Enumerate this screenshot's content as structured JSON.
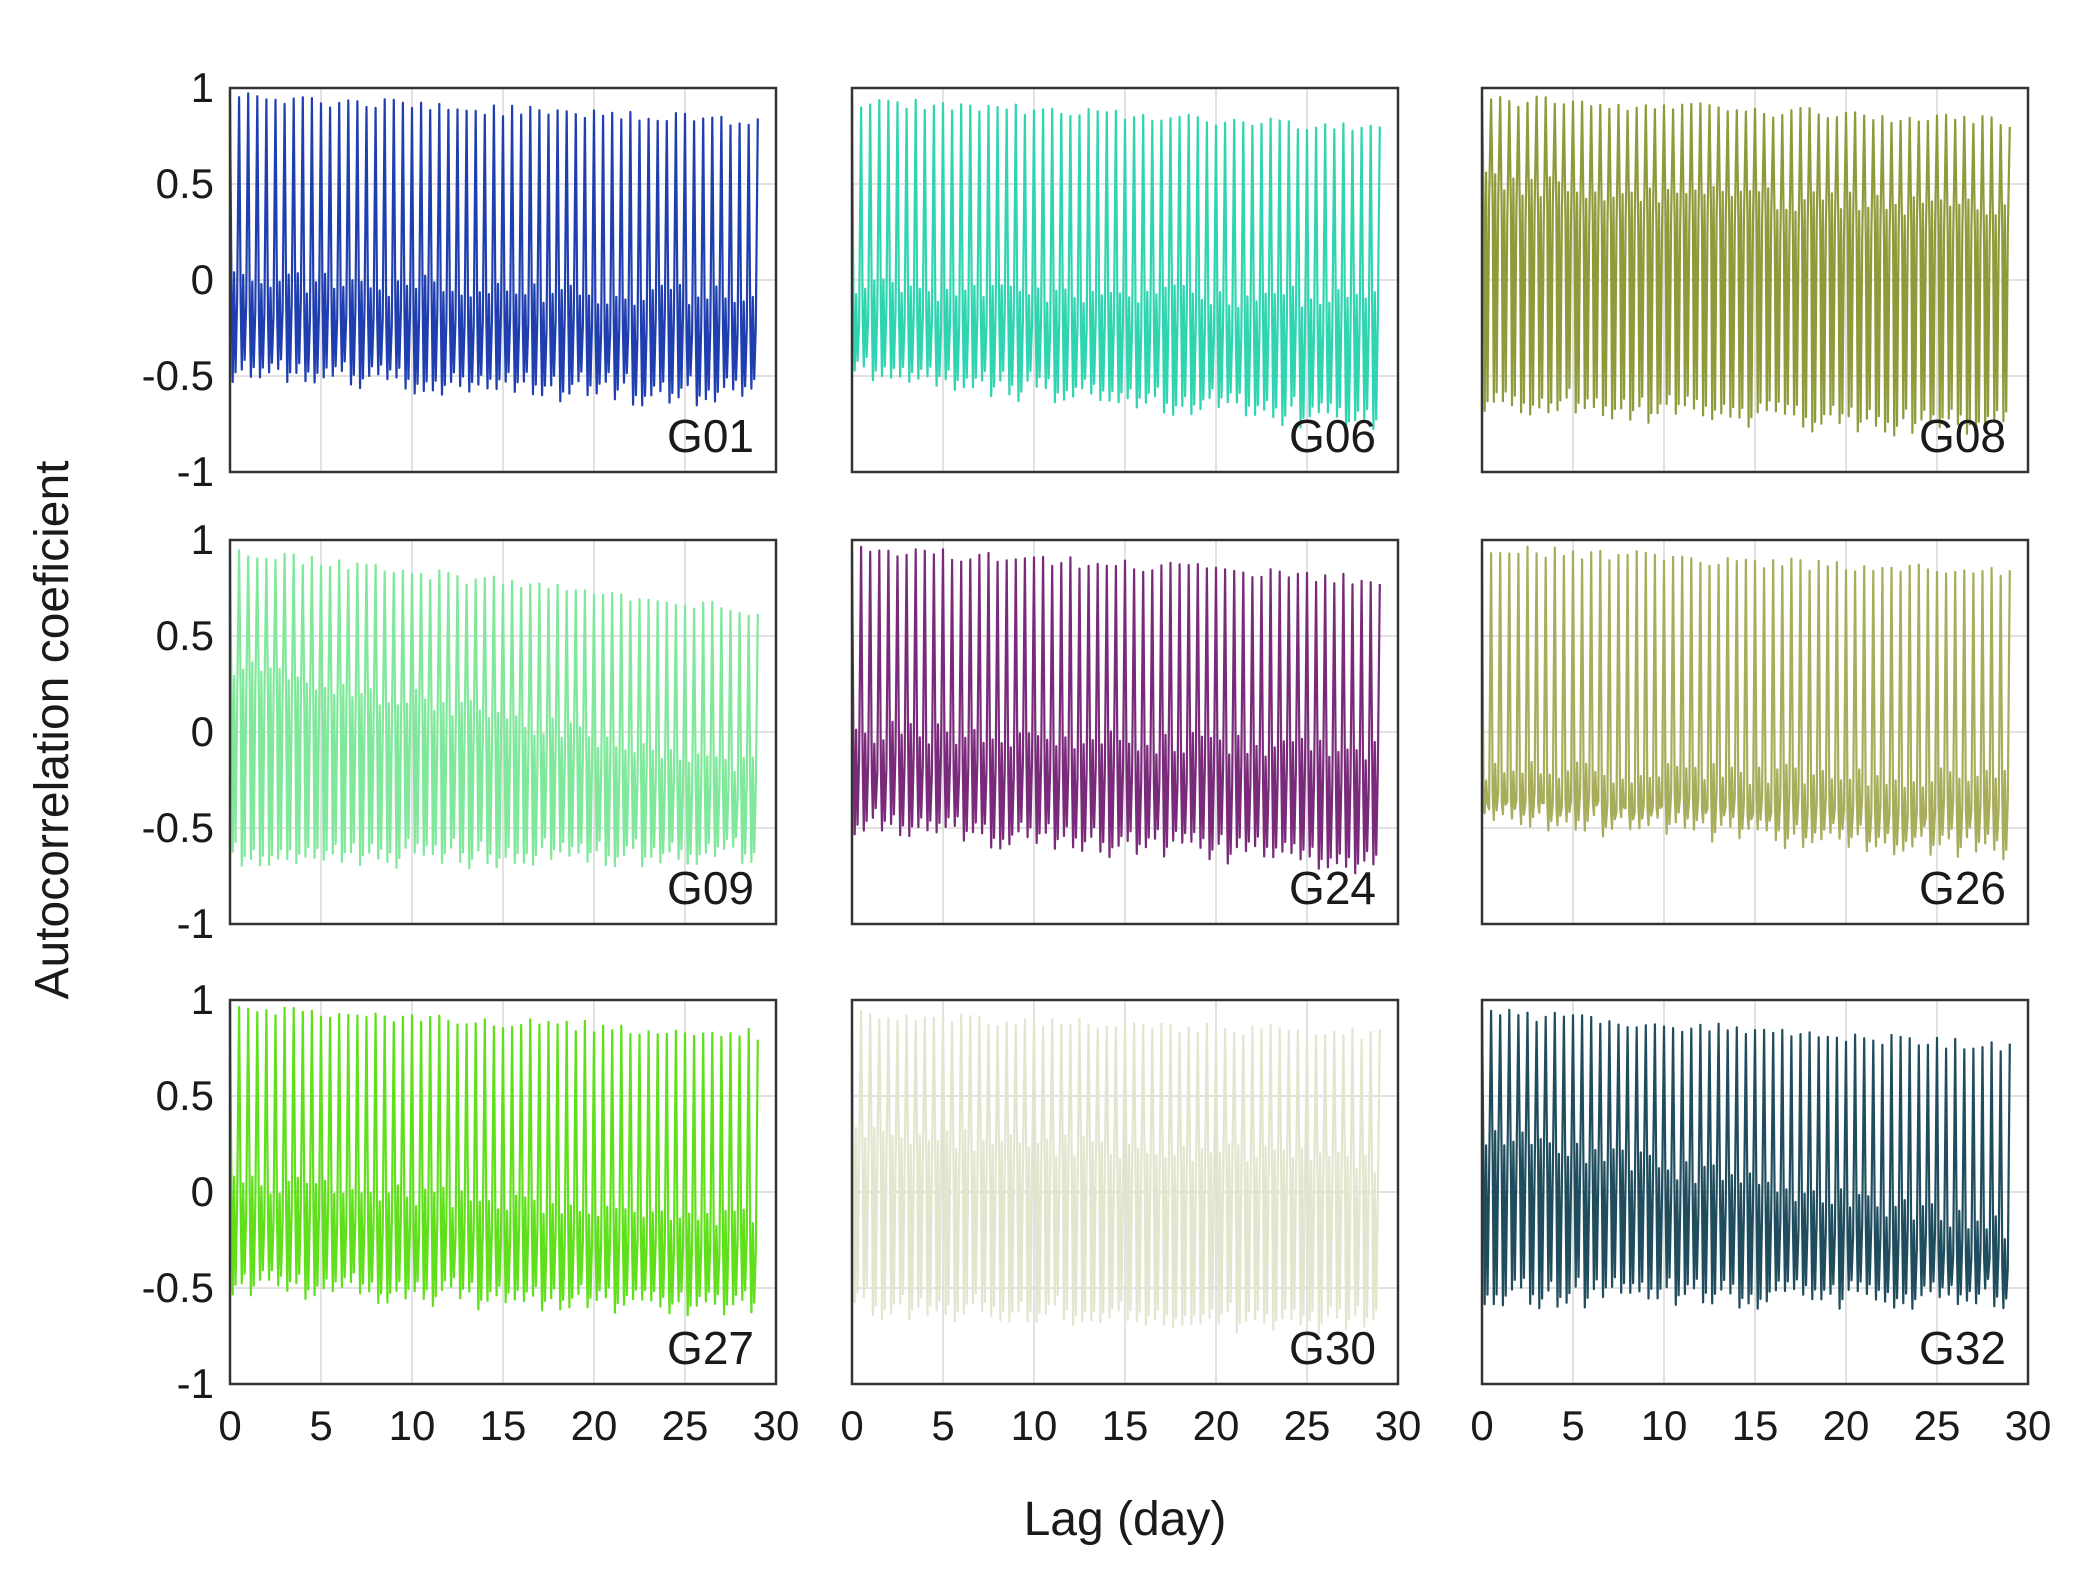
{
  "chart_data": {
    "type": "line",
    "layout": "3x3 small multiples",
    "xlabel": "Lag (day)",
    "ylabel": "Autocorrelation coeficient",
    "xlim": [
      0,
      30
    ],
    "ylim": [
      -1,
      1
    ],
    "xticks": [
      0,
      5,
      10,
      15,
      20,
      25,
      30
    ],
    "yticks": [
      1,
      0.5,
      0,
      -0.5,
      -1
    ],
    "grid": true,
    "period_days": 0.5,
    "lag_max": 29,
    "panels": [
      {
        "name": "G01",
        "color": "#1f3fb0",
        "upper": [
          0.98,
          0.85
        ],
        "lower": [
          -0.5,
          -0.62
        ],
        "mid": [
          -0.15,
          -0.25
        ]
      },
      {
        "name": "G06",
        "color": "#2fd4b0",
        "upper": [
          0.96,
          0.82
        ],
        "lower": [
          -0.5,
          -0.75
        ],
        "mid": [
          -0.2,
          -0.25
        ]
      },
      {
        "name": "G08",
        "color": "#8f9a3a",
        "upper": [
          0.97,
          0.85
        ],
        "lower": [
          -0.65,
          -0.78
        ],
        "mid": [
          0.35,
          0.2
        ]
      },
      {
        "name": "G09",
        "color": "#7fe89a",
        "upper": [
          0.97,
          0.65
        ],
        "lower": [
          -0.65,
          -0.65
        ],
        "mid": [
          0.2,
          -0.35
        ]
      },
      {
        "name": "G24",
        "color": "#7a2a7a",
        "upper": [
          0.98,
          0.82
        ],
        "lower": [
          -0.5,
          -0.7
        ],
        "mid": [
          -0.15,
          -0.25
        ]
      },
      {
        "name": "G26",
        "color": "#a7ad5a",
        "upper": [
          0.98,
          0.85
        ],
        "lower": [
          -0.45,
          -0.62
        ],
        "mid": [
          -0.35,
          -0.4
        ]
      },
      {
        "name": "G27",
        "color": "#5fe01a",
        "upper": [
          0.98,
          0.85
        ],
        "lower": [
          -0.5,
          -0.62
        ],
        "mid": [
          -0.1,
          -0.3
        ]
      },
      {
        "name": "G30",
        "color": "#e3e6cf",
        "upper": [
          0.95,
          0.85
        ],
        "lower": [
          -0.6,
          -0.7
        ],
        "mid": [
          0.15,
          0.0
        ]
      },
      {
        "name": "G32",
        "color": "#1f4d5e",
        "upper": [
          0.96,
          0.78
        ],
        "lower": [
          -0.55,
          -0.55
        ],
        "mid": [
          0.15,
          -0.35
        ]
      }
    ]
  }
}
